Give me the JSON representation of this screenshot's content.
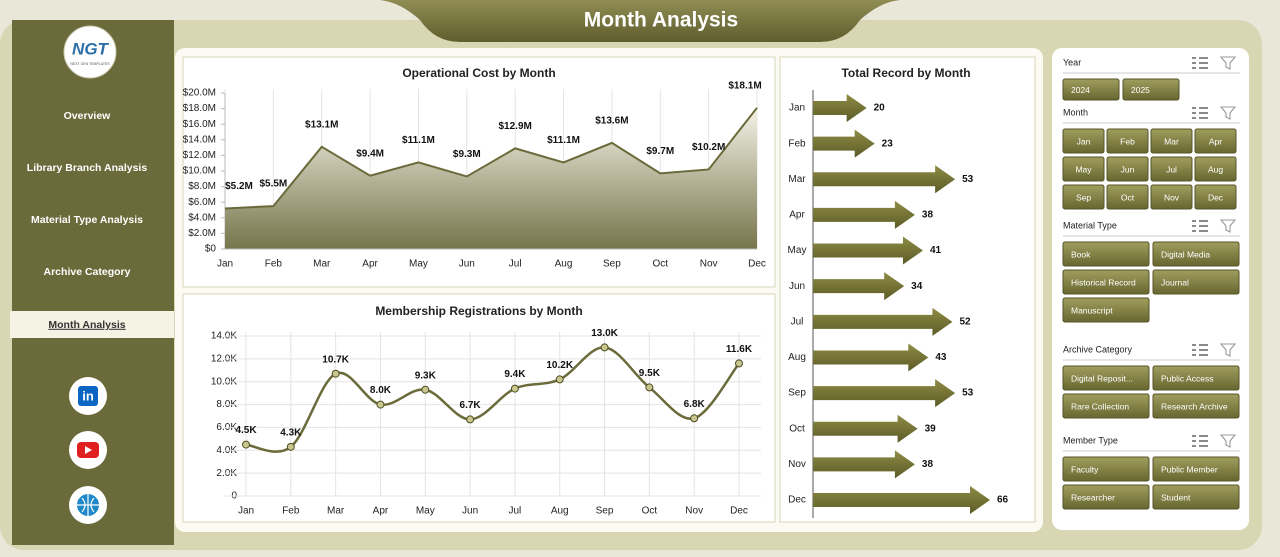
{
  "header": {
    "title": "Month Analysis"
  },
  "sidebar": {
    "logo": "NGT",
    "logo_sub": "NEXT GEN TEMPLATES",
    "menu": [
      "Overview",
      "Library Branch Analysis",
      "Material Type Analysis",
      "Archive Category",
      "Month Analysis"
    ]
  },
  "chart_data": [
    {
      "type": "area",
      "title": "Operational Cost by Month",
      "color": "#6b6a3a",
      "grid": true,
      "categories": [
        "Jan",
        "Feb",
        "Mar",
        "Apr",
        "May",
        "Jun",
        "Jul",
        "Aug",
        "Sep",
        "Oct",
        "Nov",
        "Dec"
      ],
      "values": [
        5200000,
        5500000,
        13100000,
        9400000,
        11100000,
        9300000,
        12900000,
        11100000,
        13600000,
        9700000,
        10200000,
        18100000
      ],
      "value_labels": [
        "$5.2M",
        "$5.5M",
        "$13.1M",
        "$9.4M",
        "$11.1M",
        "$9.3M",
        "$12.9M",
        "$11.1M",
        "$13.6M",
        "$9.7M",
        "$10.2M",
        "$18.1M"
      ],
      "ylim": [
        0,
        20000000
      ],
      "yticks": [
        {
          "value": 0,
          "label": "$0"
        },
        {
          "value": 2000000,
          "label": "$2.0M"
        },
        {
          "value": 4000000,
          "label": "$4.0M"
        },
        {
          "value": 6000000,
          "label": "$6.0M"
        },
        {
          "value": 8000000,
          "label": "$8.0M"
        },
        {
          "value": 10000000,
          "label": "$10.0M"
        },
        {
          "value": 12000000,
          "label": "$12.0M"
        },
        {
          "value": 14000000,
          "label": "$14.0M"
        },
        {
          "value": 16000000,
          "label": "$16.0M"
        },
        {
          "value": 18000000,
          "label": "$18.0M"
        },
        {
          "value": 20000000,
          "label": "$20.0M"
        }
      ]
    },
    {
      "type": "line",
      "title": "Membership Registrations by Month",
      "color": "#6b6a3a",
      "grid": true,
      "categories": [
        "Jan",
        "Feb",
        "Mar",
        "Apr",
        "May",
        "Jun",
        "Jul",
        "Aug",
        "Sep",
        "Oct",
        "Nov",
        "Dec"
      ],
      "values": [
        4500,
        4300,
        10700,
        8000,
        9300,
        6700,
        9400,
        10200,
        13000,
        9500,
        6800,
        11600
      ],
      "value_labels": [
        "4.5K",
        "4.3K",
        "10.7K",
        "8.0K",
        "9.3K",
        "6.7K",
        "9.4K",
        "10.2K",
        "13.0K",
        "9.5K",
        "6.8K",
        "11.6K"
      ],
      "ylim": [
        0,
        14000
      ],
      "yticks": [
        0,
        {
          "value": 2000,
          "label": "2.0K"
        },
        {
          "value": 4000,
          "label": "4.0K"
        },
        {
          "value": 6000,
          "label": "6.0K"
        },
        {
          "value": 8000,
          "label": "8.0K"
        },
        {
          "value": 10000,
          "label": "10.0K"
        },
        {
          "value": 12000,
          "label": "12.0K"
        },
        {
          "value": 14000,
          "label": "14.0K"
        }
      ]
    },
    {
      "type": "bar",
      "orientation": "horizontal",
      "title": "Total Record by Month",
      "color": "#77752f",
      "categories": [
        "Jan",
        "Feb",
        "Mar",
        "Apr",
        "May",
        "Jun",
        "Jul",
        "Aug",
        "Sep",
        "Oct",
        "Nov",
        "Dec"
      ],
      "values": [
        20,
        23,
        53,
        38,
        41,
        34,
        52,
        43,
        53,
        39,
        38,
        66
      ]
    }
  ],
  "slicers": [
    {
      "title": "Year",
      "items": [
        "2024",
        "2025"
      ]
    },
    {
      "title": "Month",
      "items": [
        "Jan",
        "Feb",
        "Mar",
        "Apr",
        "May",
        "Jun",
        "Jul",
        "Aug",
        "Sep",
        "Oct",
        "Nov",
        "Dec"
      ]
    },
    {
      "title": "Material Type",
      "items": [
        "Book",
        "Digital Media",
        "Historical Record",
        "Journal",
        "Manuscript"
      ]
    },
    {
      "title": "Archive Category",
      "items": [
        "Digital Reposit...",
        "Public Access",
        "Rare Collection",
        "Research Archive"
      ]
    },
    {
      "title": "Member Type",
      "items": [
        "Faculty",
        "Public Member",
        "Researcher",
        "Student"
      ]
    }
  ]
}
